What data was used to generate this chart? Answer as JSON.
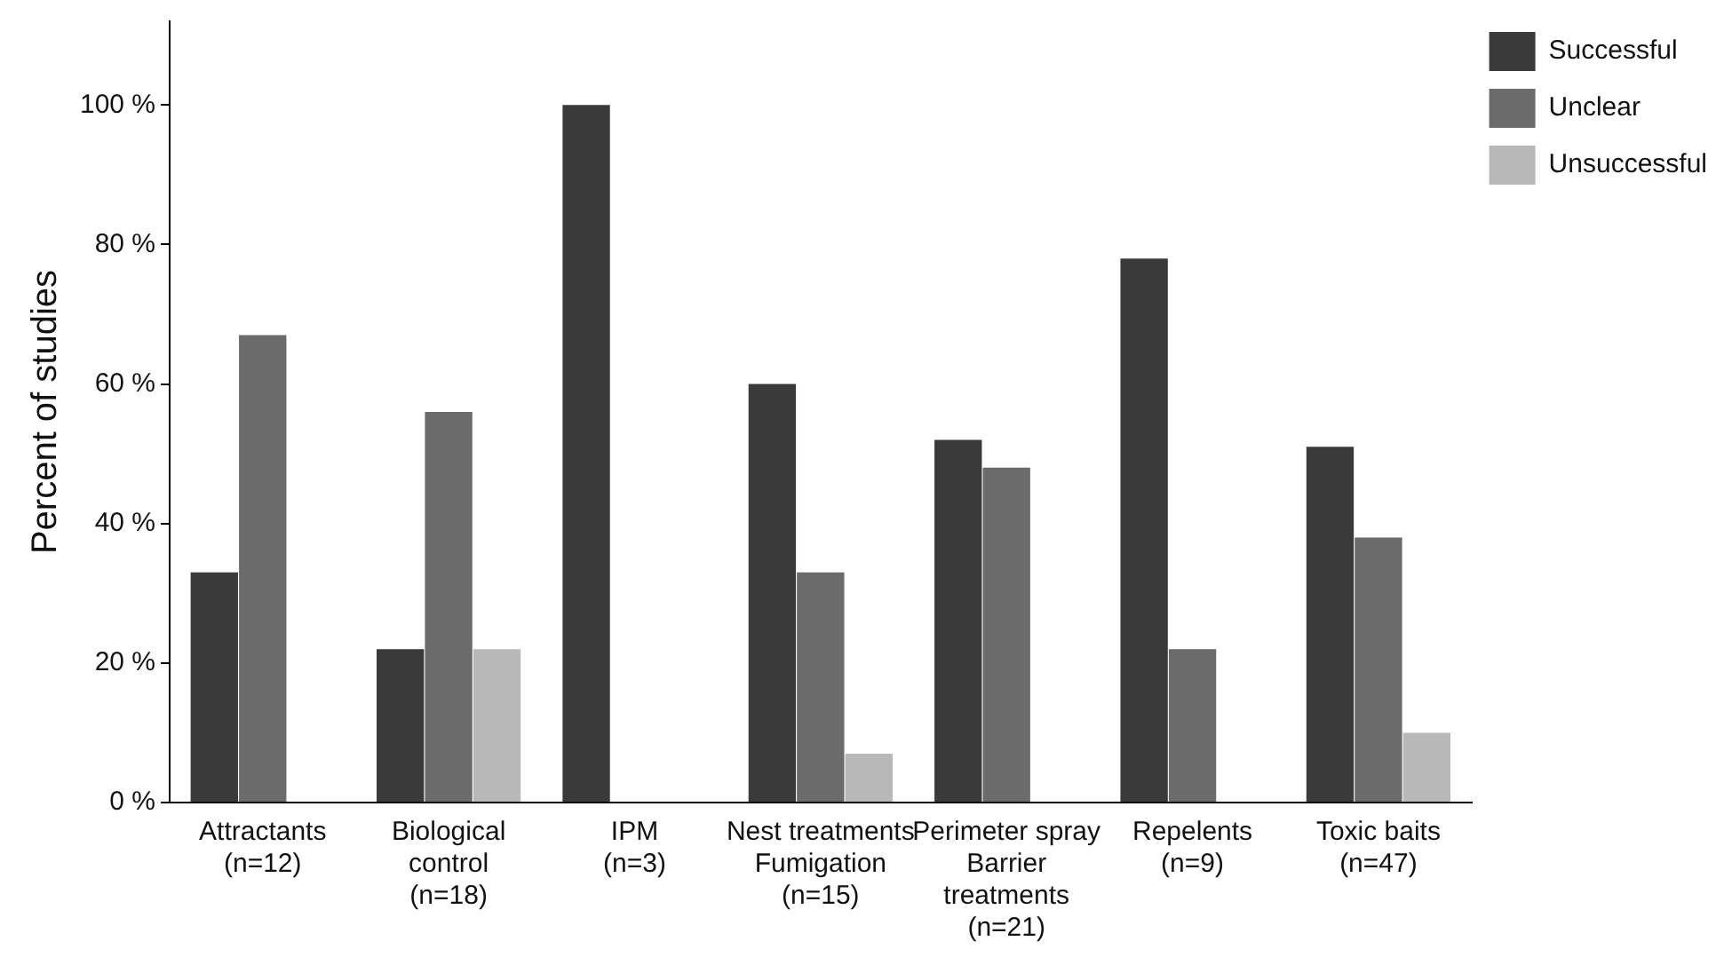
{
  "chart_data": {
    "type": "bar",
    "ylabel": "Percent of studies",
    "categories": [
      "Attractants\n(n=12)",
      "Biological\ncontrol\n(n=18)",
      "IPM\n(n=3)",
      "Nest treatments\nFumigation\n(n=15)",
      "Perimeter spray\nBarrier\ntreatments\n(n=21)",
      "Repelents\n(n=9)",
      "Toxic baits\n(n=47)"
    ],
    "series": [
      {
        "name": "Successful",
        "color": "#3a3a3a",
        "values": [
          33,
          22,
          100,
          60,
          52,
          78,
          51
        ]
      },
      {
        "name": "Unclear",
        "color": "#6b6b6b",
        "values": [
          67,
          56,
          0,
          33,
          48,
          22,
          38
        ]
      },
      {
        "name": "Unsuccessful",
        "color": "#b8b8b8",
        "values": [
          0,
          22,
          0,
          7,
          0,
          0,
          10
        ]
      }
    ],
    "ylim": [
      0,
      112
    ],
    "yticks": [
      {
        "value": 0,
        "label": "0 %"
      },
      {
        "value": 20,
        "label": "20 %"
      },
      {
        "value": 40,
        "label": "40 %"
      },
      {
        "value": 60,
        "label": "60 %"
      },
      {
        "value": 80,
        "label": "80 %"
      },
      {
        "value": 100,
        "label": "100 %"
      }
    ],
    "grid": false,
    "legend": "top right"
  }
}
